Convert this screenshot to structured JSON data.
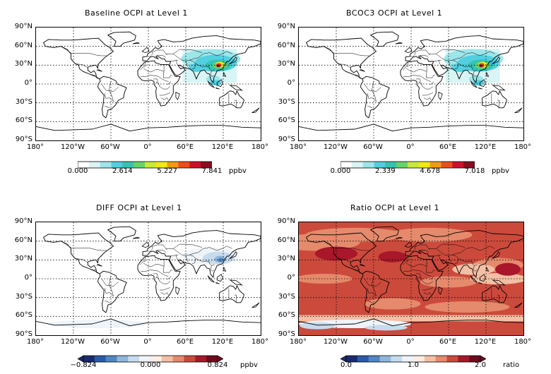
{
  "panels": [
    {
      "id": "baseline",
      "title": "Baseline OCPI at Level 1",
      "colorbar": {
        "ticks": [
          "0.000",
          "2.614",
          "5.227",
          "7.841"
        ],
        "unit": "ppbv",
        "colors": [
          "#ffffff",
          "#d8f4f4",
          "#9ce6ea",
          "#52cfe0",
          "#35c4b0",
          "#66d466",
          "#c8e83c",
          "#f2e61e",
          "#f29a14",
          "#e8501a",
          "#c8142a",
          "#8c0a1e"
        ]
      }
    },
    {
      "id": "bcoc3",
      "title": "BCOC3 OCPI at Level 1",
      "colorbar": {
        "ticks": [
          "0.000",
          "2.339",
          "4.678",
          "7.018"
        ],
        "unit": "ppbv",
        "colors": [
          "#ffffff",
          "#d8f4f4",
          "#9ce6ea",
          "#52cfe0",
          "#35c4b0",
          "#66d466",
          "#c8e83c",
          "#f2e61e",
          "#f29a14",
          "#e8501a",
          "#c8142a",
          "#8c0a1e"
        ]
      }
    },
    {
      "id": "diff",
      "title": "DIFF OCPI at Level 1",
      "colorbar": {
        "ticks": [
          "−0.824",
          "0.000",
          "0.824"
        ],
        "unit": "ppbv",
        "colors": [
          "#1a2a6e",
          "#2b5aa8",
          "#4f87c2",
          "#8fb6d8",
          "#c6dbed",
          "#eef4f9",
          "#fbece4",
          "#f4bfa4",
          "#e58a6c",
          "#cc4a3c",
          "#a8172a",
          "#6e0a1e"
        ]
      }
    },
    {
      "id": "ratio",
      "title": "Ratio OCPI at Level 1",
      "colorbar": {
        "ticks": [
          "0.0",
          "1.0",
          "2.0"
        ],
        "unit": "ratio",
        "colors": [
          "#1a2a6e",
          "#2b5aa8",
          "#4f87c2",
          "#8fb6d8",
          "#c6dbed",
          "#eef4f9",
          "#fbece4",
          "#f4bfa4",
          "#e58a6c",
          "#cc4a3c",
          "#a8172a",
          "#6e0a1e"
        ]
      }
    }
  ],
  "lat_labels": [
    "90°N",
    "60°N",
    "30°N",
    "0°",
    "30°S",
    "60°S",
    "90°S"
  ],
  "lon_labels": [
    "180°",
    "120°W",
    "60°W",
    "0°",
    "60°E",
    "120°E",
    "180°"
  ]
}
